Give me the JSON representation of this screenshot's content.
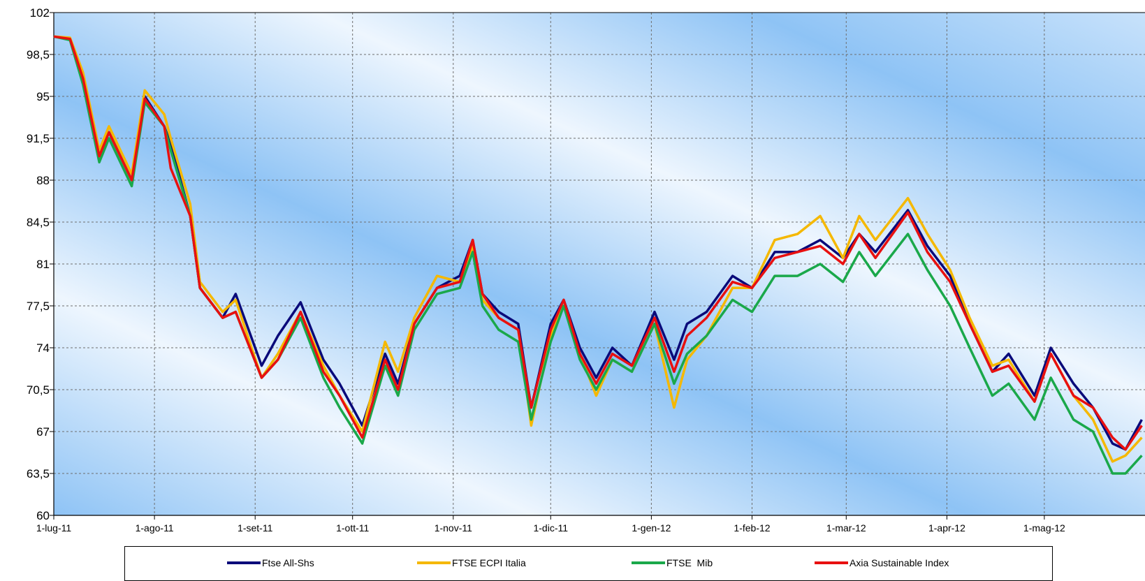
{
  "chart_data": {
    "type": "line",
    "title": "",
    "xlabel": "",
    "ylabel": "",
    "ylim": [
      60,
      102
    ],
    "y_ticks": [
      "102",
      "98,5",
      "95",
      "91,5",
      "88",
      "84,5",
      "81",
      "77,5",
      "74",
      "70,5",
      "67",
      "63,5",
      "60"
    ],
    "x_ticks": [
      "1-lug-11",
      "1-ago-11",
      "1-set-11",
      "1-ott-11",
      "1-nov-11",
      "1-dic-11",
      "1-gen-12",
      "1-feb-12",
      "1-mar-12",
      "1-apr-12",
      "1-mag-12"
    ],
    "x_range": [
      "2011-07-01",
      "2012-05-31"
    ],
    "grid": true,
    "legend_position": "bottom",
    "background": "blue gradient",
    "series": [
      {
        "name": "Ftse All-Shs",
        "color": "#0a0a7a",
        "points": [
          [
            "2011-07-01",
            100
          ],
          [
            "2011-07-06",
            99.8
          ],
          [
            "2011-07-10",
            96.5
          ],
          [
            "2011-07-15",
            90
          ],
          [
            "2011-07-18",
            92
          ],
          [
            "2011-07-25",
            88
          ],
          [
            "2011-07-29",
            95
          ],
          [
            "2011-08-04",
            92.5
          ],
          [
            "2011-08-06",
            91
          ],
          [
            "2011-08-12",
            85
          ],
          [
            "2011-08-15",
            79
          ],
          [
            "2011-08-22",
            76.5
          ],
          [
            "2011-08-26",
            78.5
          ],
          [
            "2011-09-03",
            72.5
          ],
          [
            "2011-09-08",
            75
          ],
          [
            "2011-09-15",
            77.8
          ],
          [
            "2011-09-22",
            73
          ],
          [
            "2011-09-27",
            71
          ],
          [
            "2011-10-04",
            67.5
          ],
          [
            "2011-10-11",
            73.5
          ],
          [
            "2011-10-15",
            71
          ],
          [
            "2011-10-20",
            76
          ],
          [
            "2011-10-27",
            79
          ],
          [
            "2011-11-03",
            80
          ],
          [
            "2011-11-07",
            83
          ],
          [
            "2011-11-10",
            78.5
          ],
          [
            "2011-11-15",
            77
          ],
          [
            "2011-11-21",
            76
          ],
          [
            "2011-11-25",
            69
          ],
          [
            "2011-12-01",
            76
          ],
          [
            "2011-12-05",
            78
          ],
          [
            "2011-12-10",
            74
          ],
          [
            "2011-12-15",
            71.5
          ],
          [
            "2011-12-20",
            74
          ],
          [
            "2011-12-26",
            72.5
          ],
          [
            "2012-01-02",
            77
          ],
          [
            "2012-01-08",
            73
          ],
          [
            "2012-01-12",
            76
          ],
          [
            "2012-01-18",
            77
          ],
          [
            "2012-01-26",
            80
          ],
          [
            "2012-02-01",
            79
          ],
          [
            "2012-02-08",
            82
          ],
          [
            "2012-02-15",
            82
          ],
          [
            "2012-02-22",
            83
          ],
          [
            "2012-02-29",
            81.5
          ],
          [
            "2012-03-05",
            83.5
          ],
          [
            "2012-03-10",
            82
          ],
          [
            "2012-03-20",
            85.5
          ],
          [
            "2012-03-26",
            82.5
          ],
          [
            "2012-04-02",
            80
          ],
          [
            "2012-04-08",
            76
          ],
          [
            "2012-04-15",
            72
          ],
          [
            "2012-04-20",
            73.5
          ],
          [
            "2012-04-28",
            70
          ],
          [
            "2012-05-03",
            74
          ],
          [
            "2012-05-10",
            71
          ],
          [
            "2012-05-16",
            69
          ],
          [
            "2012-05-22",
            66
          ],
          [
            "2012-05-26",
            65.5
          ],
          [
            "2012-05-31",
            68
          ]
        ]
      },
      {
        "name": "FTSE ECPI Italia",
        "color": "#f5b800",
        "points": [
          [
            "2011-07-01",
            100
          ],
          [
            "2011-07-06",
            99.9
          ],
          [
            "2011-07-10",
            97
          ],
          [
            "2011-07-15",
            90.5
          ],
          [
            "2011-07-18",
            92.5
          ],
          [
            "2011-07-25",
            88.5
          ],
          [
            "2011-07-29",
            95.5
          ],
          [
            "2011-08-04",
            93.5
          ],
          [
            "2011-08-06",
            91.5
          ],
          [
            "2011-08-12",
            86
          ],
          [
            "2011-08-15",
            79.5
          ],
          [
            "2011-08-22",
            77
          ],
          [
            "2011-08-26",
            78
          ],
          [
            "2011-09-03",
            71.5
          ],
          [
            "2011-09-08",
            73.5
          ],
          [
            "2011-09-15",
            77
          ],
          [
            "2011-09-22",
            72.5
          ],
          [
            "2011-09-27",
            70
          ],
          [
            "2011-10-04",
            67
          ],
          [
            "2011-10-11",
            74.5
          ],
          [
            "2011-10-15",
            72
          ],
          [
            "2011-10-20",
            76.5
          ],
          [
            "2011-10-27",
            80
          ],
          [
            "2011-11-03",
            79.5
          ],
          [
            "2011-11-07",
            82.5
          ],
          [
            "2011-11-10",
            78
          ],
          [
            "2011-11-15",
            76.5
          ],
          [
            "2011-11-21",
            75.5
          ],
          [
            "2011-11-25",
            67.5
          ],
          [
            "2011-12-01",
            75
          ],
          [
            "2011-12-05",
            77.5
          ],
          [
            "2011-12-10",
            73.5
          ],
          [
            "2011-12-15",
            70
          ],
          [
            "2011-12-20",
            73
          ],
          [
            "2011-12-26",
            72
          ],
          [
            "2012-01-02",
            76
          ],
          [
            "2012-01-08",
            69
          ],
          [
            "2012-01-12",
            73
          ],
          [
            "2012-01-18",
            75
          ],
          [
            "2012-01-26",
            79
          ],
          [
            "2012-02-01",
            79
          ],
          [
            "2012-02-08",
            83
          ],
          [
            "2012-02-15",
            83.5
          ],
          [
            "2012-02-22",
            85
          ],
          [
            "2012-02-29",
            81.5
          ],
          [
            "2012-03-05",
            85
          ],
          [
            "2012-03-10",
            83
          ],
          [
            "2012-03-20",
            86.5
          ],
          [
            "2012-03-26",
            83.5
          ],
          [
            "2012-04-02",
            80.5
          ],
          [
            "2012-04-08",
            76.5
          ],
          [
            "2012-04-15",
            72.5
          ],
          [
            "2012-04-20",
            73
          ],
          [
            "2012-04-28",
            69.5
          ],
          [
            "2012-05-03",
            73.5
          ],
          [
            "2012-05-10",
            70
          ],
          [
            "2012-05-16",
            68
          ],
          [
            "2012-05-22",
            64.5
          ],
          [
            "2012-05-26",
            65
          ],
          [
            "2012-05-31",
            66.5
          ]
        ]
      },
      {
        "name": "FTSE  Mib",
        "color": "#1aa84a",
        "points": [
          [
            "2011-07-01",
            100
          ],
          [
            "2011-07-06",
            99.7
          ],
          [
            "2011-07-10",
            96
          ],
          [
            "2011-07-15",
            89.5
          ],
          [
            "2011-07-18",
            91.5
          ],
          [
            "2011-07-25",
            87.5
          ],
          [
            "2011-07-29",
            94.5
          ],
          [
            "2011-08-04",
            92.5
          ],
          [
            "2011-08-06",
            90.5
          ],
          [
            "2011-08-12",
            85
          ],
          [
            "2011-08-15",
            79
          ],
          [
            "2011-08-22",
            76.5
          ],
          [
            "2011-08-26",
            77
          ],
          [
            "2011-09-03",
            71.5
          ],
          [
            "2011-09-08",
            73
          ],
          [
            "2011-09-15",
            76.5
          ],
          [
            "2011-09-22",
            71.5
          ],
          [
            "2011-09-27",
            69
          ],
          [
            "2011-10-04",
            66
          ],
          [
            "2011-10-11",
            72.5
          ],
          [
            "2011-10-15",
            70
          ],
          [
            "2011-10-20",
            75.5
          ],
          [
            "2011-10-27",
            78.5
          ],
          [
            "2011-11-03",
            79
          ],
          [
            "2011-11-07",
            82
          ],
          [
            "2011-11-10",
            77.5
          ],
          [
            "2011-11-15",
            75.5
          ],
          [
            "2011-11-21",
            74.5
          ],
          [
            "2011-11-25",
            68
          ],
          [
            "2011-12-01",
            74.5
          ],
          [
            "2011-12-05",
            77.5
          ],
          [
            "2011-12-10",
            73
          ],
          [
            "2011-12-15",
            70.5
          ],
          [
            "2011-12-20",
            73
          ],
          [
            "2011-12-26",
            72
          ],
          [
            "2012-01-02",
            76
          ],
          [
            "2012-01-08",
            71
          ],
          [
            "2012-01-12",
            73.5
          ],
          [
            "2012-01-18",
            75
          ],
          [
            "2012-01-26",
            78
          ],
          [
            "2012-02-01",
            77
          ],
          [
            "2012-02-08",
            80
          ],
          [
            "2012-02-15",
            80
          ],
          [
            "2012-02-22",
            81
          ],
          [
            "2012-02-29",
            79.5
          ],
          [
            "2012-03-05",
            82
          ],
          [
            "2012-03-10",
            80
          ],
          [
            "2012-03-20",
            83.5
          ],
          [
            "2012-03-26",
            80.5
          ],
          [
            "2012-04-02",
            77.5
          ],
          [
            "2012-04-08",
            74
          ],
          [
            "2012-04-15",
            70
          ],
          [
            "2012-04-20",
            71
          ],
          [
            "2012-04-28",
            68
          ],
          [
            "2012-05-03",
            71.5
          ],
          [
            "2012-05-10",
            68
          ],
          [
            "2012-05-16",
            67
          ],
          [
            "2012-05-22",
            63.5
          ],
          [
            "2012-05-26",
            63.5
          ],
          [
            "2012-05-31",
            65
          ]
        ]
      },
      {
        "name": "Axia Sustainable Index",
        "color": "#e81010",
        "points": [
          [
            "2011-07-01",
            100
          ],
          [
            "2011-07-06",
            99.8
          ],
          [
            "2011-07-10",
            96.5
          ],
          [
            "2011-07-15",
            90
          ],
          [
            "2011-07-18",
            92
          ],
          [
            "2011-07-25",
            88
          ],
          [
            "2011-07-29",
            94.8
          ],
          [
            "2011-08-04",
            92.5
          ],
          [
            "2011-08-06",
            89
          ],
          [
            "2011-08-12",
            85
          ],
          [
            "2011-08-15",
            79
          ],
          [
            "2011-08-22",
            76.5
          ],
          [
            "2011-08-26",
            77
          ],
          [
            "2011-09-03",
            71.5
          ],
          [
            "2011-09-08",
            73
          ],
          [
            "2011-09-15",
            77
          ],
          [
            "2011-09-22",
            72
          ],
          [
            "2011-09-27",
            70
          ],
          [
            "2011-10-04",
            66.5
          ],
          [
            "2011-10-11",
            73
          ],
          [
            "2011-10-15",
            70.5
          ],
          [
            "2011-10-20",
            76
          ],
          [
            "2011-10-27",
            79
          ],
          [
            "2011-11-03",
            79.5
          ],
          [
            "2011-11-07",
            83
          ],
          [
            "2011-11-10",
            78.5
          ],
          [
            "2011-11-15",
            76.5
          ],
          [
            "2011-11-21",
            75.5
          ],
          [
            "2011-11-25",
            69
          ],
          [
            "2011-12-01",
            75.5
          ],
          [
            "2011-12-05",
            78
          ],
          [
            "2011-12-10",
            73.5
          ],
          [
            "2011-12-15",
            71
          ],
          [
            "2011-12-20",
            73.5
          ],
          [
            "2011-12-26",
            72.5
          ],
          [
            "2012-01-02",
            76.5
          ],
          [
            "2012-01-08",
            72
          ],
          [
            "2012-01-12",
            75
          ],
          [
            "2012-01-18",
            76.5
          ],
          [
            "2012-01-26",
            79.5
          ],
          [
            "2012-02-01",
            79
          ],
          [
            "2012-02-08",
            81.5
          ],
          [
            "2012-02-15",
            82
          ],
          [
            "2012-02-22",
            82.5
          ],
          [
            "2012-02-29",
            81
          ],
          [
            "2012-03-05",
            83.5
          ],
          [
            "2012-03-10",
            81.5
          ],
          [
            "2012-03-20",
            85.3
          ],
          [
            "2012-03-26",
            82
          ],
          [
            "2012-04-02",
            79.5
          ],
          [
            "2012-04-08",
            76
          ],
          [
            "2012-04-15",
            72
          ],
          [
            "2012-04-20",
            72.5
          ],
          [
            "2012-04-28",
            69.5
          ],
          [
            "2012-05-03",
            73.5
          ],
          [
            "2012-05-10",
            70
          ],
          [
            "2012-05-16",
            69
          ],
          [
            "2012-05-22",
            66.5
          ],
          [
            "2012-05-26",
            65.5
          ],
          [
            "2012-05-31",
            67.5
          ]
        ]
      }
    ]
  }
}
